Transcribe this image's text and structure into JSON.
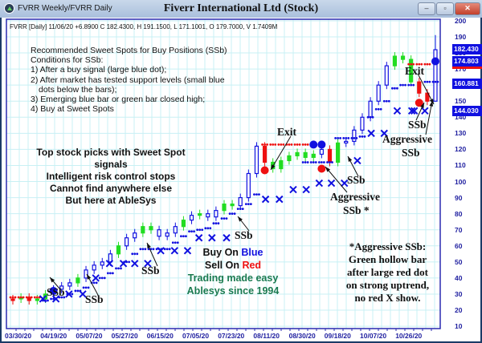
{
  "window": {
    "left_title": "FVRR Weekly/FVRR Daily",
    "title": "Fiverr International Ltd (Stock)",
    "buttons": {
      "minimize": "–",
      "maximize": "▫",
      "close": "✕"
    }
  },
  "header": "FVRR [Daily] 11/06/20  +6.8900 C 182.4300, H 191.1500, L 171.1001, O 179.7000, V 1.7409M",
  "notes": {
    "conditions": [
      "Recommended Sweet Spots for Buy Positions (SSb)",
      "Conditions for SSb:",
      "1) After a buy signal (large blue dot);",
      "2) After market has tested support levels (small blue",
      "    dots below the bars);",
      "3) Emerging blue bar or green bar closed high;",
      "4) Buy at Sweet Spots"
    ],
    "pitch": [
      "Top stock picks with Sweet Spot signals",
      "Intelligent risk control stops",
      "Cannot find anywhere else",
      "But here at AbleSys"
    ],
    "buy_prefix": "Buy On ",
    "buy_word": "Blue",
    "sell_prefix": "Sell On ",
    "sell_word": "Red",
    "tagline1": "Trading made easy",
    "tagline2": "Ablesys since 1994",
    "aggressive_note": [
      "*Aggressive SSb:",
      "Green hollow bar",
      "after large red dot",
      "on strong uptrend,",
      "no red X show."
    ]
  },
  "annotations": {
    "ssb": "SSb",
    "exit": "Exit",
    "aggressive": "Aggressive",
    "aggressive_ssb_star": "SSb *"
  },
  "colors": {
    "up": "#1010e0",
    "green": "#22dd22",
    "red": "#ee1111",
    "grid": "#c8f0f4",
    "axis": "#2020a0",
    "tagline": "#1a7a50"
  },
  "chart_data": {
    "type": "bar",
    "ticker": "FVRR",
    "interval": "Daily",
    "ylim": [
      10,
      200
    ],
    "y_ticks": [
      10,
      20,
      30,
      40,
      50,
      60,
      70,
      80,
      90,
      100,
      110,
      120,
      130,
      140,
      150,
      160,
      170,
      180,
      190,
      200
    ],
    "x_tick_labels": [
      "03/30/20",
      "04/19/20",
      "05/07/20",
      "05/27/20",
      "06/15/20",
      "07/05/20",
      "07/23/20",
      "08/11/20",
      "08/30/20",
      "09/18/20",
      "10/07/20",
      "10/26/20"
    ],
    "price_labels": [
      {
        "value": 182.43,
        "text": "182.430"
      },
      {
        "value": 174.803,
        "text": "174.803"
      },
      {
        "value": 160.881,
        "text": "160.881"
      },
      {
        "value": 144.03,
        "text": "144.030"
      }
    ],
    "closes": [
      27,
      28,
      26,
      27,
      30,
      33,
      35,
      37,
      40,
      45,
      48,
      50,
      55,
      60,
      65,
      68,
      72,
      70,
      66,
      68,
      72,
      76,
      79,
      80,
      78,
      82,
      86,
      85,
      90,
      105,
      122,
      112,
      108,
      113,
      116,
      118,
      115,
      117,
      120,
      112,
      124,
      125,
      132,
      140,
      150,
      160,
      172,
      178,
      176,
      162,
      155,
      150,
      182
    ],
    "bar_colors": [
      "red",
      "green",
      "red",
      "green",
      "green",
      "blue",
      "blue",
      "blue",
      "green",
      "blue",
      "blue",
      "blue",
      "blue",
      "green",
      "blue",
      "blue",
      "green",
      "green",
      "blue",
      "blue",
      "blue",
      "green",
      "blue",
      "green",
      "blue",
      "blue",
      "green",
      "green",
      "blue",
      "blue",
      "blue",
      "red",
      "green",
      "green",
      "green",
      "green",
      "green",
      "green",
      "blue",
      "red",
      "green",
      "blue",
      "blue",
      "blue",
      "blue",
      "blue",
      "blue",
      "green",
      "green",
      "green",
      "red",
      "red",
      "blue"
    ],
    "last_bar": {
      "open": 179.7,
      "high": 191.15,
      "low": 171.1,
      "close": 182.43
    },
    "blue_stop_dots": [
      null,
      null,
      null,
      null,
      26,
      27,
      28,
      30,
      32,
      34,
      37,
      40,
      43,
      46,
      50,
      55,
      58,
      58,
      58,
      58,
      62,
      66,
      69,
      70,
      71,
      74,
      77,
      80,
      83,
      86,
      92,
      null,
      null,
      null,
      null,
      null,
      112,
      112,
      112,
      112,
      127,
      127,
      127,
      128,
      140,
      145,
      150,
      158,
      160,
      160,
      null,
      162,
      162
    ],
    "red_stop_dots": [
      28,
      28,
      28,
      28,
      null,
      null,
      null,
      null,
      null,
      null,
      null,
      null,
      null,
      null,
      null,
      null,
      null,
      null,
      null,
      null,
      null,
      null,
      null,
      null,
      null,
      null,
      null,
      null,
      null,
      null,
      null,
      123,
      123,
      123,
      123,
      123,
      123,
      123,
      null,
      null,
      null,
      null,
      null,
      null,
      null,
      null,
      null,
      null,
      null,
      173,
      173,
      173,
      null
    ],
    "buy_signals": [
      {
        "bar": 5,
        "price": 32
      },
      {
        "bar": 37,
        "price": 123
      },
      {
        "bar": 38,
        "price": 123
      },
      {
        "bar": 52,
        "price": 174.8
      }
    ],
    "sell_signals": [
      {
        "bar": 31,
        "price": 107
      },
      {
        "bar": 38,
        "price": 108
      },
      {
        "bar": 50,
        "price": 149
      }
    ],
    "x_marks": [
      [
        3.7,
        27
      ],
      [
        5.3,
        27
      ],
      [
        6.9,
        30
      ],
      [
        8.6,
        30
      ],
      [
        10.2,
        40
      ],
      [
        11.9,
        49
      ],
      [
        13.6,
        49
      ],
      [
        15,
        49
      ],
      [
        16.6,
        49
      ],
      [
        18.2,
        57
      ],
      [
        19.9,
        57
      ],
      [
        21.5,
        57
      ],
      [
        22.9,
        65
      ],
      [
        24.5,
        65
      ],
      [
        26.3,
        65
      ],
      [
        31.1,
        89
      ],
      [
        32.8,
        89
      ],
      [
        34.5,
        95
      ],
      [
        36.1,
        95
      ],
      [
        37.7,
        99
      ],
      [
        39.2,
        99
      ],
      [
        40.8,
        99
      ],
      [
        42.4,
        113
      ],
      [
        44.1,
        130
      ],
      [
        45.7,
        130
      ],
      [
        47.3,
        144
      ],
      [
        49.4,
        144
      ],
      [
        49.1,
        144
      ],
      [
        50.7,
        144
      ]
    ]
  }
}
